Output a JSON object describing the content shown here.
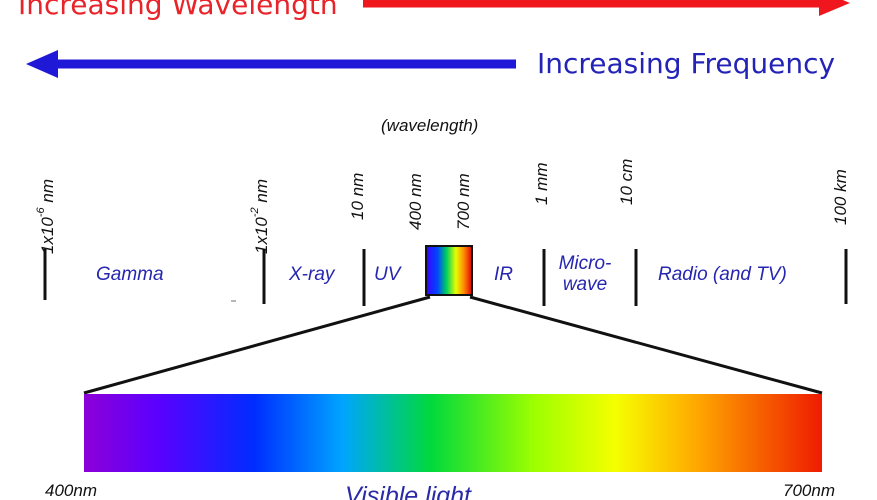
{
  "arrows": {
    "wavelength_label": "Increasing Wavelength",
    "frequency_label": "Increasing Frequency",
    "wavelength_color": "#e8232a",
    "frequency_color": "#2323b8"
  },
  "scale": {
    "heading": "(wavelength)",
    "tick_labels": {
      "gamma_left": {
        "base": "1x10",
        "exp": "-6",
        "unit": " nm"
      },
      "xray_left": {
        "base": "1x10",
        "exp": "-2",
        "unit": " nm"
      },
      "ten_nm": "10 nm",
      "four_hundred_nm": "400 nm",
      "seven_hundred_nm": "700 nm",
      "one_mm": "1 mm",
      "ten_cm": "10 cm",
      "hundred_km": "100 km"
    },
    "bands": {
      "gamma": "Gamma",
      "xray": "X-ray",
      "uv": "UV",
      "ir": "IR",
      "microwave_line1": "Micro-",
      "microwave_line2": "wave",
      "radio": "Radio (and TV)"
    }
  },
  "visible_spectrum": {
    "left_label": "400nm",
    "right_label": "700nm",
    "caption": "Visible light"
  }
}
